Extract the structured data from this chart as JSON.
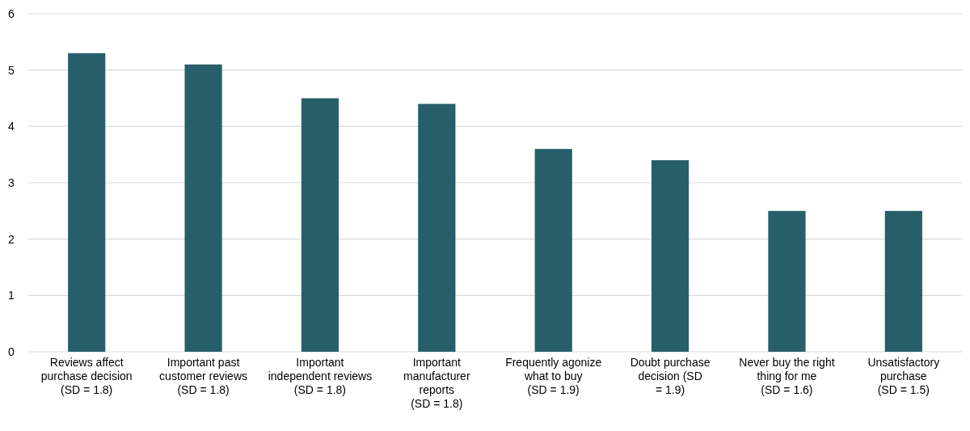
{
  "chart_data": {
    "type": "bar",
    "categories": [
      "Reviews affect\npurchase decision\n(SD = 1.8)",
      "Important past\ncustomer reviews\n(SD = 1.8)",
      "Important\nindependent reviews\n(SD = 1.8)",
      "Important\nmanufacturer\nreports\n(SD = 1.8)",
      "Frequently agonize\nwhat to buy\n(SD = 1.9)",
      "Doubt purchase\ndecision (SD\n= 1.9)",
      "Never buy the right\nthing for me\n(SD = 1.6)",
      "Unsatisfactory\npurchase\n(SD = 1.5)"
    ],
    "values": [
      5.3,
      5.1,
      4.5,
      4.4,
      3.6,
      3.4,
      2.5,
      2.5
    ],
    "color": "#265f6a",
    "ylim": [
      0,
      6
    ],
    "yticks": [
      0,
      1,
      2,
      3,
      4,
      5,
      6
    ],
    "grid": "y"
  }
}
